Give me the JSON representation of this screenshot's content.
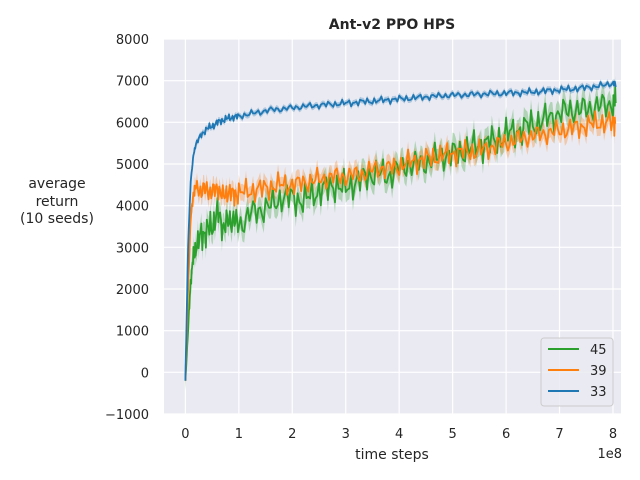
{
  "chart_data": {
    "type": "line",
    "title": "Ant-v2 PPO HPS",
    "xlabel": "time steps",
    "ylabel_lines": [
      "average",
      "return",
      "(10 seeds)"
    ],
    "x_offset_label": "1e8",
    "xlim": [
      -0.4,
      8.15
    ],
    "ylim": [
      -1000,
      8000
    ],
    "x_ticks": [
      0,
      1,
      2,
      3,
      4,
      5,
      6,
      7,
      8
    ],
    "x_tick_labels": [
      "0",
      "1",
      "2",
      "3",
      "4",
      "5",
      "6",
      "7",
      "8"
    ],
    "y_ticks": [
      -1000,
      0,
      1000,
      2000,
      3000,
      4000,
      5000,
      6000,
      7000,
      8000
    ],
    "y_tick_labels": [
      "−1000",
      "0",
      "1000",
      "2000",
      "3000",
      "4000",
      "5000",
      "6000",
      "7000",
      "8000"
    ],
    "grid": true,
    "legend_position": "bottom-right",
    "plot_background": "#eaeaf2",
    "series": [
      {
        "name": "45",
        "color": "#2ca02c",
        "x": [
          0,
          0.05,
          0.1,
          0.15,
          0.2,
          0.3,
          0.4,
          0.5,
          0.6,
          0.7,
          0.8,
          0.9,
          1.0,
          1.2,
          1.4,
          1.6,
          1.8,
          2.0,
          2.2,
          2.4,
          2.6,
          2.8,
          3.0,
          3.2,
          3.4,
          3.6,
          3.8,
          4.0,
          4.2,
          4.4,
          4.6,
          4.8,
          5.0,
          5.2,
          5.4,
          5.6,
          5.8,
          6.0,
          6.2,
          6.4,
          6.6,
          6.8,
          7.0,
          7.2,
          7.4,
          7.6,
          7.8,
          8.0,
          8.05
        ],
        "values": [
          -200,
          1000,
          2200,
          2800,
          3000,
          3300,
          3400,
          3500,
          3850,
          3500,
          3600,
          3700,
          3500,
          3800,
          3900,
          4000,
          4200,
          4200,
          4100,
          4300,
          4400,
          4500,
          4400,
          4600,
          4700,
          4800,
          4700,
          4900,
          5000,
          5000,
          5100,
          5200,
          5250,
          5300,
          5400,
          5500,
          5550,
          5700,
          5800,
          5900,
          6000,
          6100,
          6200,
          6300,
          6300,
          6350,
          6400,
          6450,
          6500
        ],
        "band": 260
      },
      {
        "name": "39",
        "color": "#ff7f0e",
        "x": [
          0,
          0.05,
          0.1,
          0.15,
          0.2,
          0.3,
          0.4,
          0.5,
          0.6,
          0.7,
          0.8,
          0.9,
          1.0,
          1.2,
          1.4,
          1.6,
          1.8,
          2.0,
          2.2,
          2.4,
          2.6,
          2.8,
          3.0,
          3.2,
          3.4,
          3.6,
          3.8,
          4.0,
          4.2,
          4.4,
          4.6,
          4.8,
          5.0,
          5.2,
          5.4,
          5.6,
          5.8,
          6.0,
          6.2,
          6.4,
          6.6,
          6.8,
          7.0,
          7.2,
          7.4,
          7.6,
          7.8,
          8.0,
          8.05
        ],
        "values": [
          -200,
          2000,
          3700,
          4300,
          4450,
          4350,
          4400,
          4300,
          4450,
          4200,
          4350,
          4250,
          4300,
          4350,
          4400,
          4450,
          4500,
          4500,
          4550,
          4600,
          4650,
          4700,
          4700,
          4750,
          4800,
          4900,
          4900,
          4950,
          5050,
          5100,
          5150,
          5200,
          5250,
          5300,
          5300,
          5350,
          5450,
          5500,
          5600,
          5650,
          5700,
          5750,
          5800,
          5850,
          5900,
          5950,
          6000,
          6000,
          6000
        ],
        "band": 200
      },
      {
        "name": "33",
        "color": "#1f77b4",
        "x": [
          0,
          0.05,
          0.1,
          0.15,
          0.2,
          0.3,
          0.4,
          0.5,
          0.6,
          0.7,
          0.8,
          0.9,
          1.0,
          1.2,
          1.4,
          1.6,
          1.8,
          2.0,
          2.2,
          2.4,
          2.6,
          2.8,
          3.0,
          3.2,
          3.4,
          3.6,
          3.8,
          4.0,
          4.2,
          4.4,
          4.6,
          4.8,
          5.0,
          5.2,
          5.4,
          5.6,
          5.8,
          6.0,
          6.2,
          6.4,
          6.6,
          6.8,
          7.0,
          7.2,
          7.4,
          7.6,
          7.8,
          8.0,
          8.05
        ],
        "values": [
          -200,
          3000,
          4600,
          5200,
          5500,
          5700,
          5850,
          5900,
          6000,
          6050,
          6100,
          6120,
          6150,
          6200,
          6250,
          6300,
          6320,
          6350,
          6380,
          6400,
          6420,
          6440,
          6460,
          6480,
          6500,
          6520,
          6540,
          6560,
          6580,
          6600,
          6620,
          6640,
          6650,
          6660,
          6670,
          6680,
          6690,
          6700,
          6710,
          6720,
          6740,
          6760,
          6780,
          6800,
          6820,
          6850,
          6880,
          6950,
          6900
        ],
        "band": 70
      }
    ]
  }
}
